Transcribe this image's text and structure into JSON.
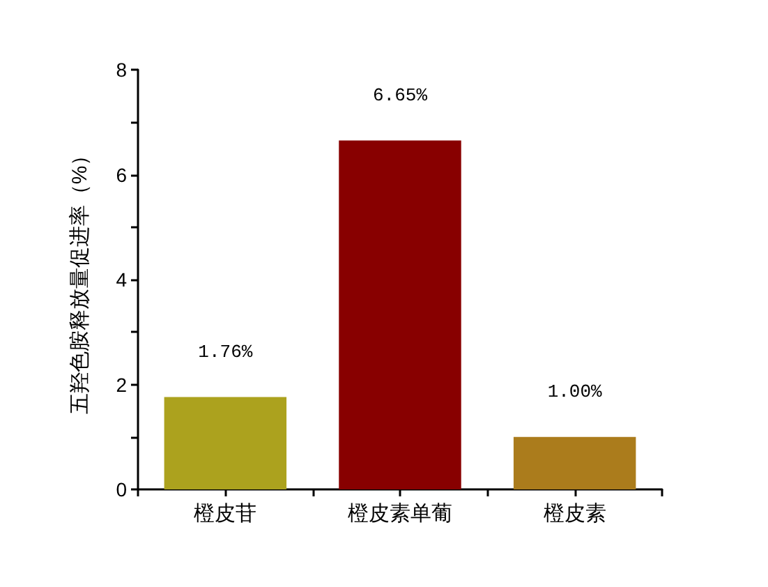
{
  "chart_data": {
    "type": "bar",
    "ylabel": "五羟色胺释放量促进率（%）",
    "categories": [
      "橙皮苷",
      "橙皮素单葡",
      "橙皮素"
    ],
    "values": [
      1.76,
      6.65,
      1.0
    ],
    "colors": [
      "#aca21e",
      "#880000",
      "#ab7c1c"
    ],
    "value_labels": [
      "1.76%",
      "6.65%",
      "1.00%"
    ],
    "ylim": [
      0,
      8
    ],
    "yticks": [
      0,
      {
        "value": 1,
        "label": null
      },
      2,
      {
        "value": 3,
        "label": null
      },
      4,
      {
        "value": 5,
        "label": null
      },
      6,
      {
        "value": 7,
        "label": null
      },
      8
    ],
    "grid": false
  }
}
